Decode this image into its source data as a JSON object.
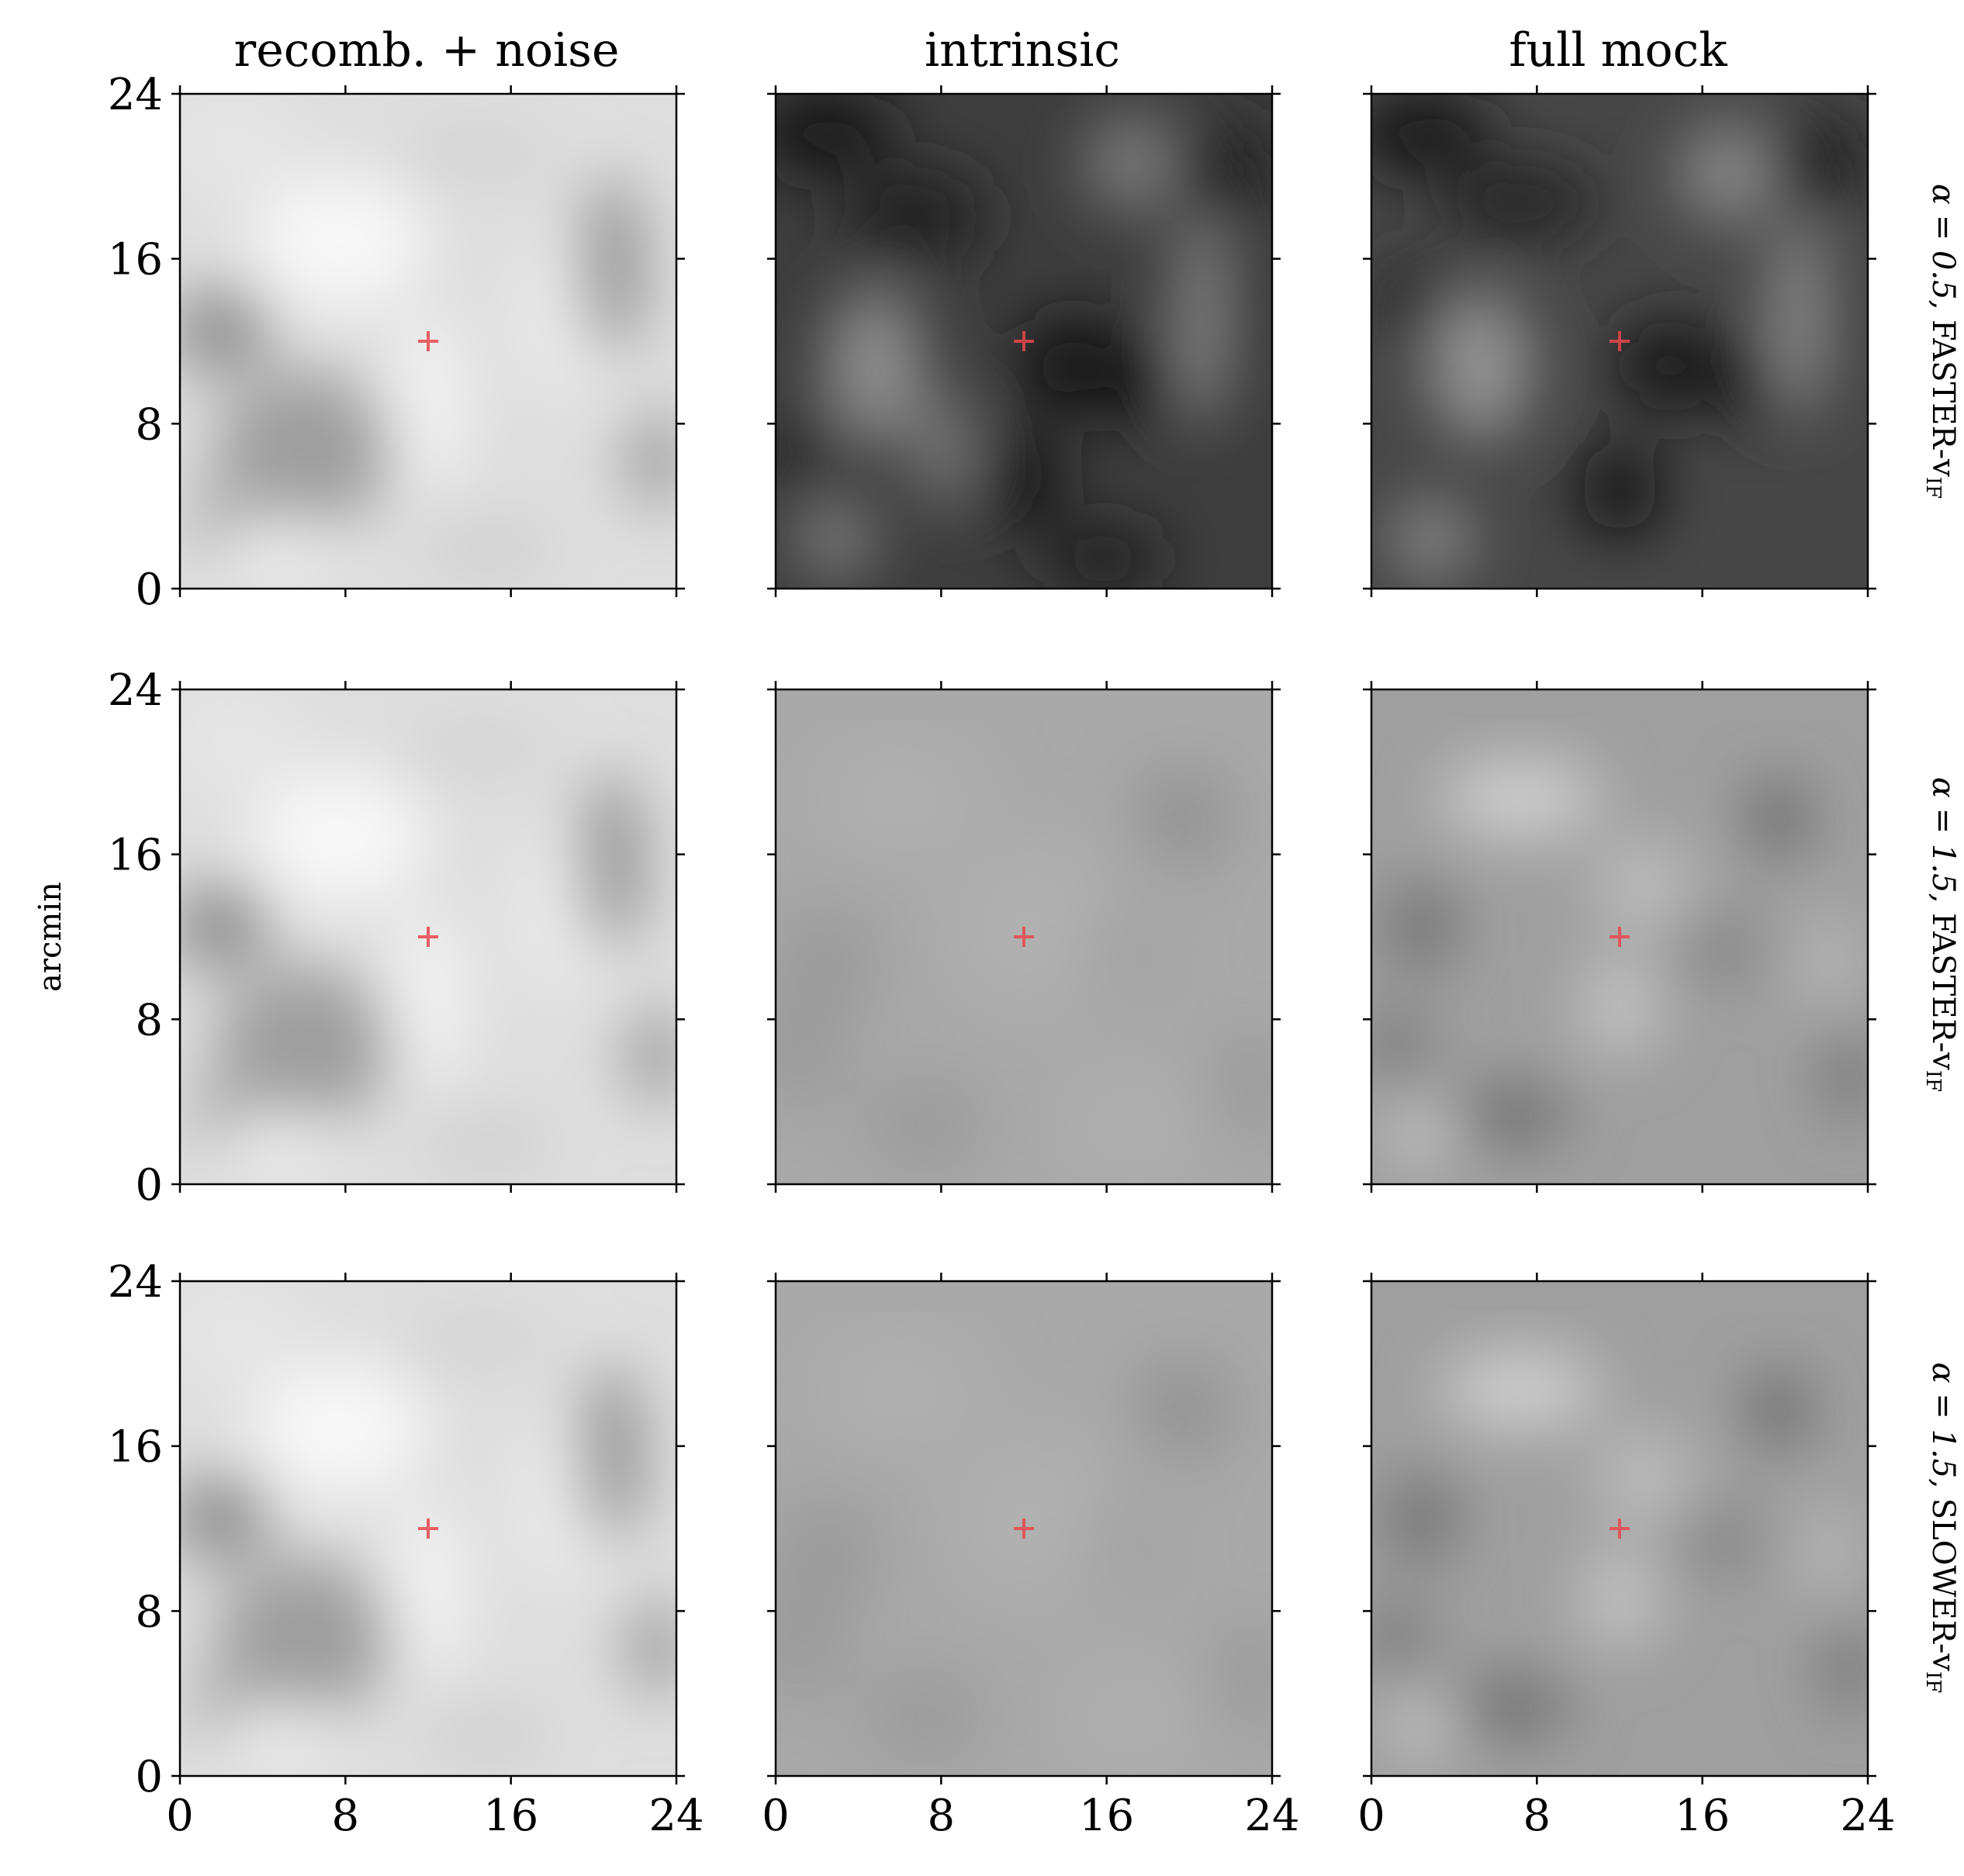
{
  "chart_data": {
    "type": "heatmap",
    "layout": "3x3 grid of grayscale map panels",
    "column_titles": [
      "recomb. + noise",
      "intrinsic",
      "full mock"
    ],
    "row_labels": [
      {
        "alpha_label": "α = 0.5,",
        "model": "FASTER-v",
        "model_sub": "IF"
      },
      {
        "alpha_label": "α = 1.5,",
        "model": "FASTER-v",
        "model_sub": "IF"
      },
      {
        "alpha_label": "α = 1.5,",
        "model": "SLOWER-v",
        "model_sub": "IF"
      }
    ],
    "ylabel": "arcmin",
    "xlabel": "",
    "xlim": [
      0,
      24
    ],
    "ylim": [
      0,
      24
    ],
    "xticks": [
      0,
      8,
      16,
      24
    ],
    "yticks": [
      0,
      8,
      16,
      24
    ],
    "xtick_labels": [
      "0",
      "8",
      "16",
      "24"
    ],
    "ytick_labels": [
      "0",
      "8",
      "16",
      "24"
    ],
    "marker": {
      "x": 12,
      "y": 12,
      "symbol": "+"
    },
    "marker_color": "#e8474d",
    "colormap": "gray"
  }
}
